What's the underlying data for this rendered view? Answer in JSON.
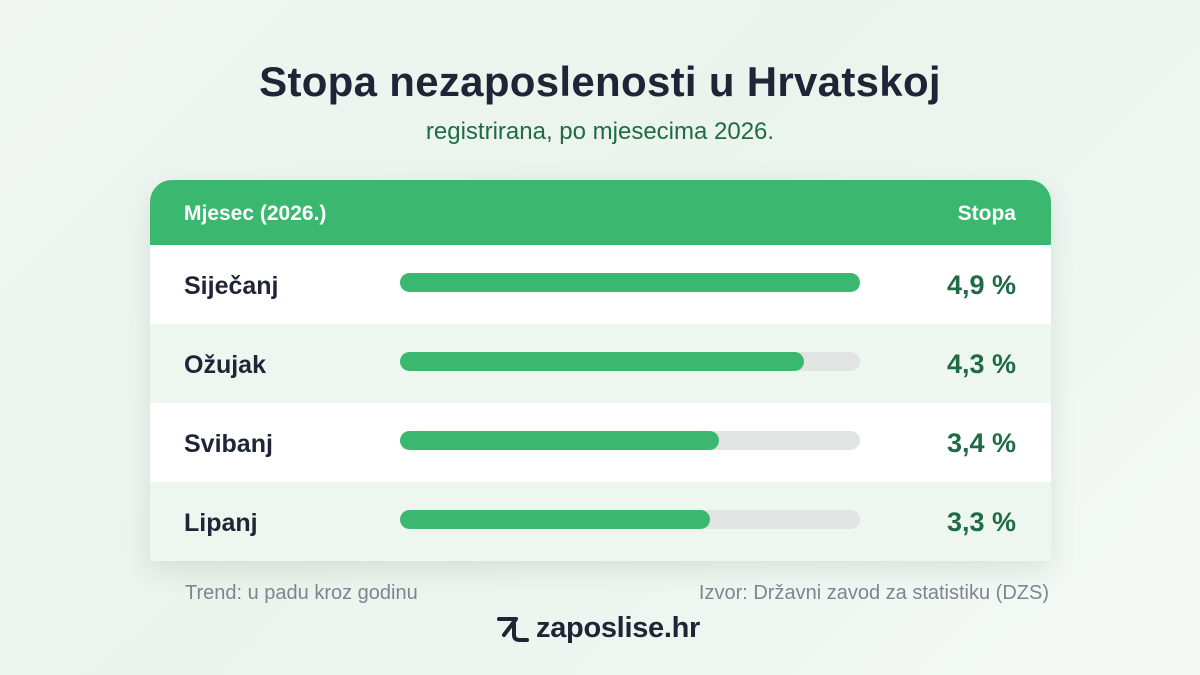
{
  "title": "Stopa nezaposlenosti u Hrvatskoj",
  "subtitle": "registrirana, po mjesecima 2026.",
  "table": {
    "header_month": "Mjesec (2026.)",
    "header_rate": "Stopa"
  },
  "chart_data": {
    "type": "bar",
    "title": "Stopa nezaposlenosti u Hrvatskoj",
    "subtitle": "registrirana, po mjesecima 2026.",
    "xlabel": "Mjesec (2026.)",
    "ylabel": "Stopa",
    "categories": [
      "Siječanj",
      "Ožujak",
      "Svibanj",
      "Lipanj"
    ],
    "values": [
      4.9,
      4.3,
      3.4,
      3.3
    ],
    "value_labels": [
      "4,9 %",
      "4,3 %",
      "3,4 %",
      "3,3 %"
    ],
    "ylim": [
      0,
      4.9
    ],
    "orientation": "horizontal"
  },
  "footer": {
    "trend": "Trend: u padu kroz godinu",
    "source": "Izvor: Državni zavod za statistiku (DZS)",
    "logo_text": "zaposlise.hr",
    "logo_icon": "zaposlise-logo-icon"
  },
  "colors": {
    "accent": "#3bb870",
    "dark_green": "#1e6b45",
    "text_dark": "#1f2436",
    "track": "#e1e4e3",
    "row_alt": "#eef6f0"
  }
}
